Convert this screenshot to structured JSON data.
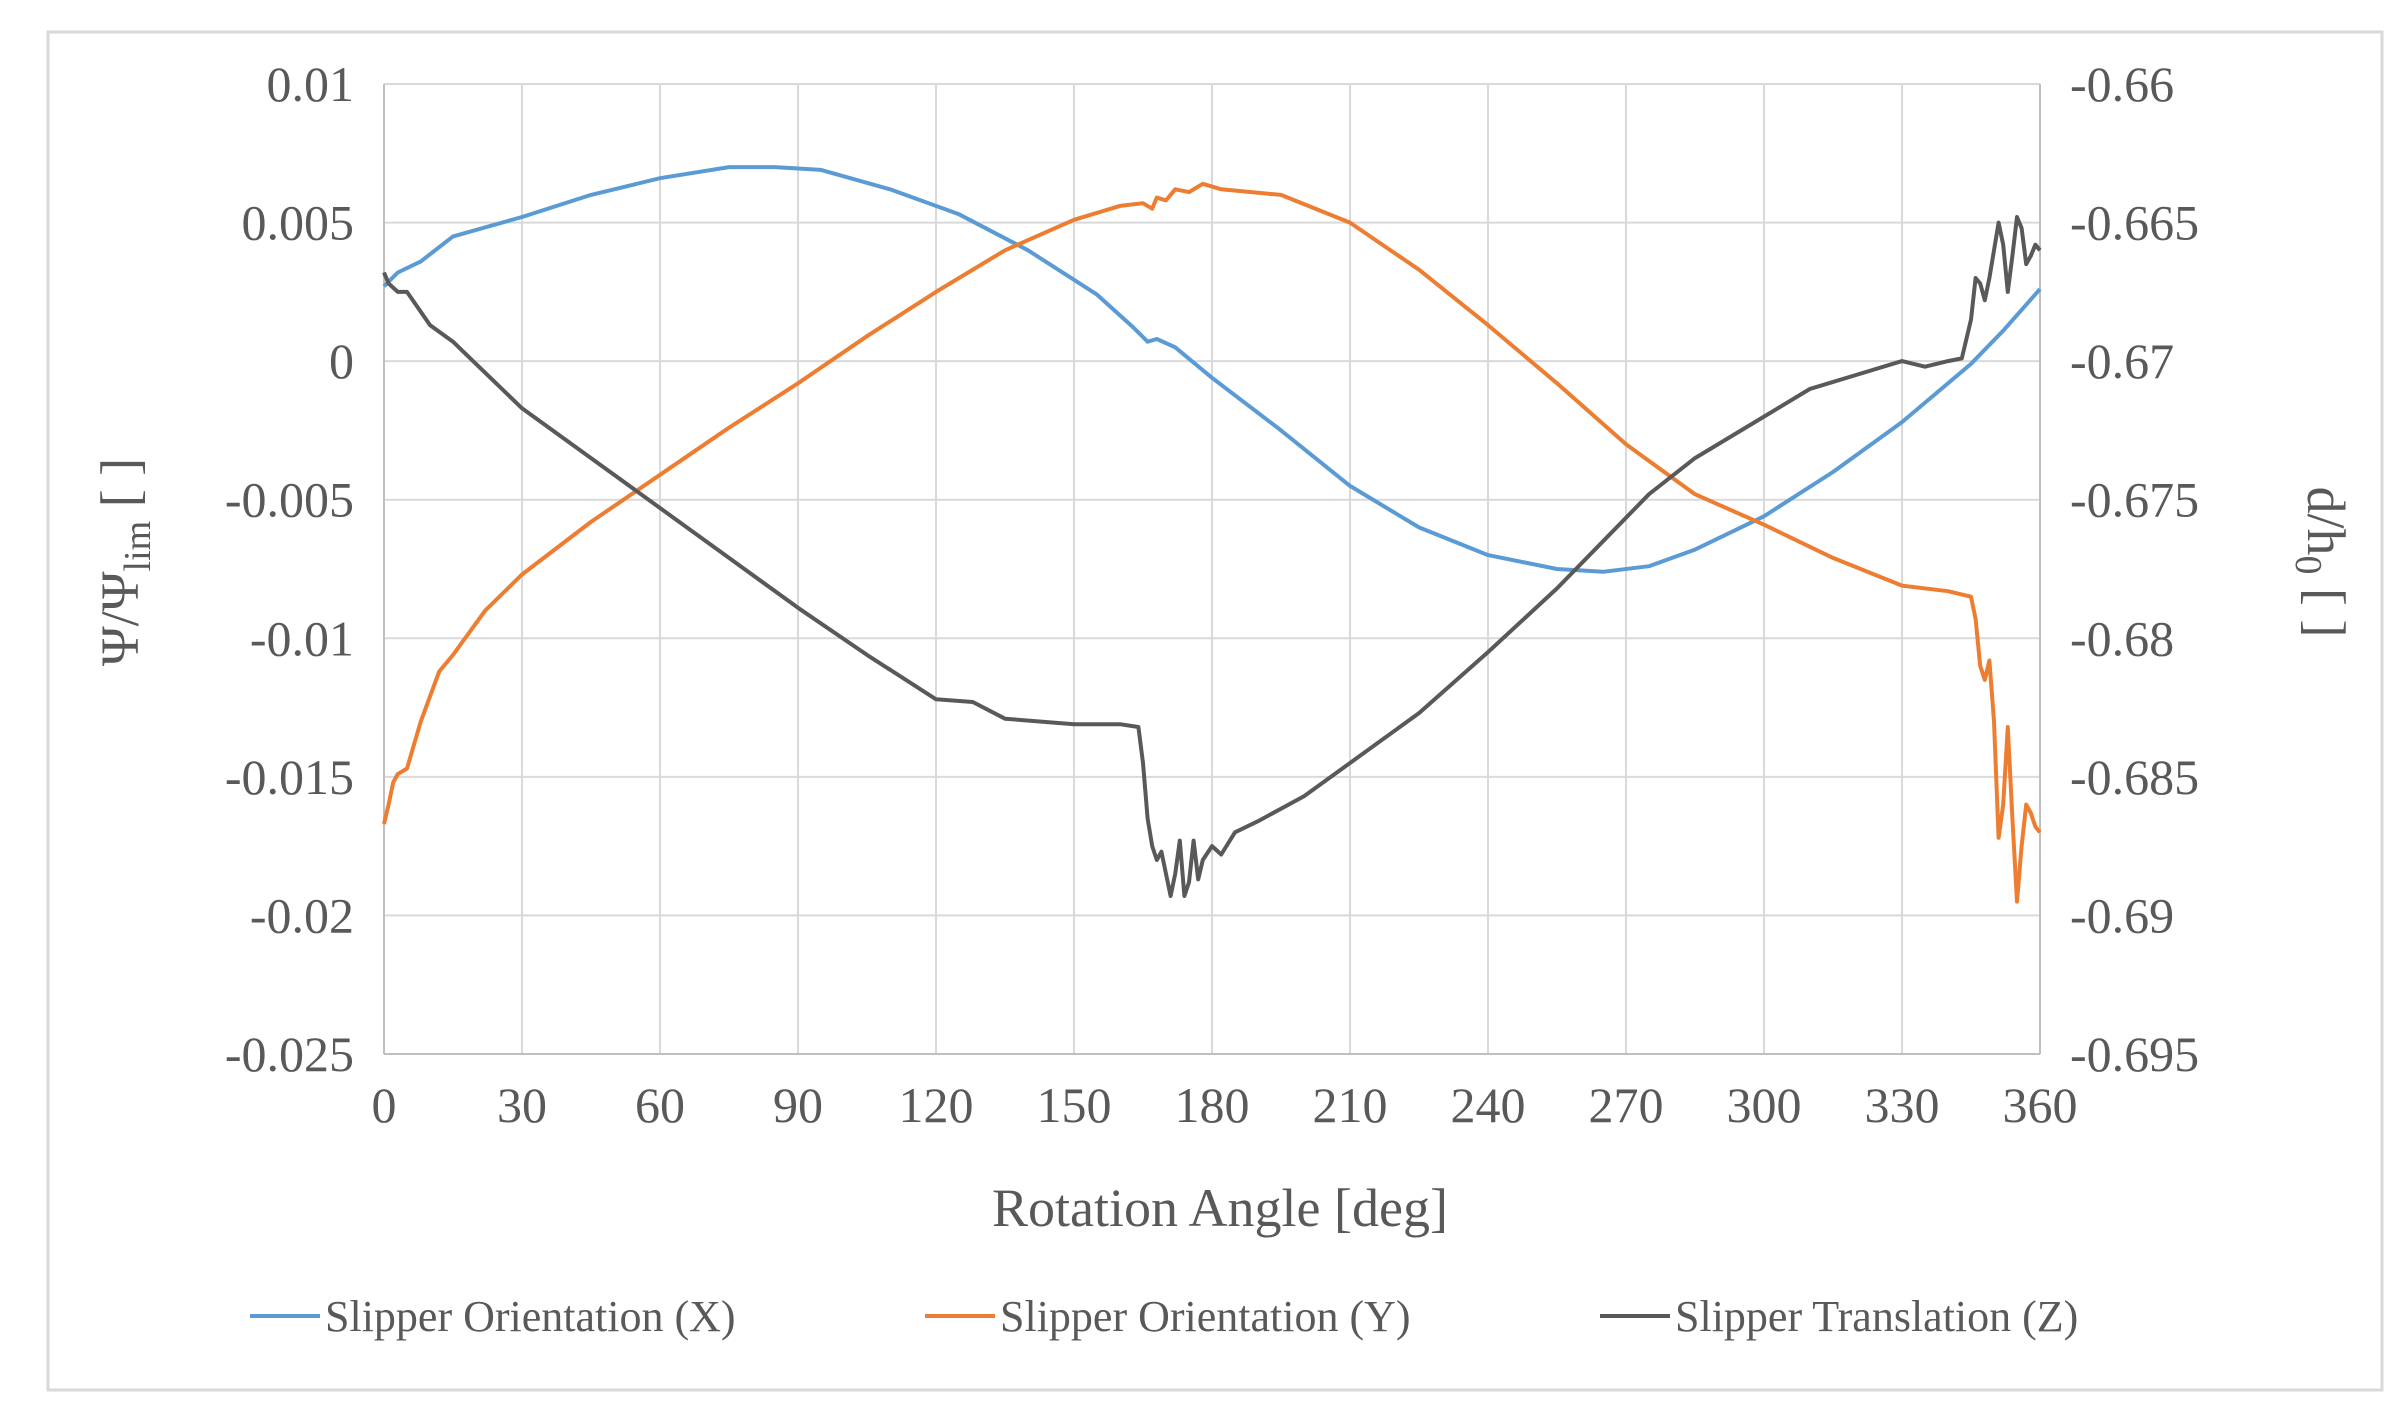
{
  "chart_data": {
    "type": "line",
    "title": "",
    "xlabel": "Rotation Angle [deg]",
    "ylabel_left": {
      "base": "Ψ/Ψ",
      "sub": "lim",
      "suffix": " [ ]"
    },
    "ylabel_right": {
      "base": "d/h",
      "sub": "0",
      "suffix": " [ ]"
    },
    "xlim": [
      0,
      360
    ],
    "ylim_left": [
      -0.025,
      0.01
    ],
    "ylim_right": [
      -0.695,
      -0.66
    ],
    "x_ticks": [
      "0",
      "30",
      "60",
      "90",
      "120",
      "150",
      "180",
      "210",
      "240",
      "270",
      "300",
      "330",
      "360"
    ],
    "x_tick_values": [
      0,
      30,
      60,
      90,
      120,
      150,
      180,
      210,
      240,
      270,
      300,
      330,
      360
    ],
    "y_left_ticks": [
      "0.01",
      "0.005",
      "0",
      "-0.005",
      "-0.01",
      "-0.015",
      "-0.02",
      "-0.025"
    ],
    "y_left_tick_values": [
      0.01,
      0.005,
      0,
      -0.005,
      -0.01,
      -0.015,
      -0.02,
      -0.025
    ],
    "y_right_ticks": [
      "-0.66",
      "-0.665",
      "-0.67",
      "-0.675",
      "-0.68",
      "-0.685",
      "-0.69",
      "-0.695"
    ],
    "y_right_tick_values": [
      -0.66,
      -0.665,
      -0.67,
      -0.675,
      -0.68,
      -0.685,
      -0.69,
      -0.695
    ],
    "grid": true,
    "legend_position": "bottom",
    "series": [
      {
        "name": "Slipper Orientation (X)",
        "color": "#5B9BD5",
        "axis": "left",
        "points": [
          [
            0,
            0.0027
          ],
          [
            3,
            0.0032
          ],
          [
            8,
            0.0036
          ],
          [
            15,
            0.0045
          ],
          [
            30,
            0.0052
          ],
          [
            45,
            0.006
          ],
          [
            60,
            0.0066
          ],
          [
            75,
            0.007
          ],
          [
            85,
            0.007
          ],
          [
            95,
            0.0069
          ],
          [
            110,
            0.0062
          ],
          [
            125,
            0.0053
          ],
          [
            140,
            0.004
          ],
          [
            155,
            0.0024
          ],
          [
            163,
            0.0012
          ],
          [
            166,
            0.0007
          ],
          [
            168,
            0.0008
          ],
          [
            172,
            0.0005
          ],
          [
            180,
            -0.0006
          ],
          [
            195,
            -0.0025
          ],
          [
            210,
            -0.0045
          ],
          [
            225,
            -0.006
          ],
          [
            240,
            -0.007
          ],
          [
            255,
            -0.0075
          ],
          [
            265,
            -0.0076
          ],
          [
            275,
            -0.0074
          ],
          [
            285,
            -0.0068
          ],
          [
            300,
            -0.0056
          ],
          [
            315,
            -0.004
          ],
          [
            330,
            -0.0022
          ],
          [
            345,
            -0.0001
          ],
          [
            352,
            0.0011
          ],
          [
            360,
            0.0026
          ]
        ]
      },
      {
        "name": "Slipper Orientation (Y)",
        "color": "#ED7D31",
        "axis": "left",
        "points": [
          [
            0,
            -0.0167
          ],
          [
            1,
            -0.016
          ],
          [
            2,
            -0.0152
          ],
          [
            3,
            -0.0149
          ],
          [
            5,
            -0.0147
          ],
          [
            8,
            -0.013
          ],
          [
            12,
            -0.0112
          ],
          [
            15,
            -0.0106
          ],
          [
            22,
            -0.009
          ],
          [
            30,
            -0.0077
          ],
          [
            45,
            -0.0058
          ],
          [
            60,
            -0.0041
          ],
          [
            75,
            -0.0024
          ],
          [
            90,
            -0.0008
          ],
          [
            105,
            0.0009
          ],
          [
            120,
            0.0025
          ],
          [
            135,
            0.004
          ],
          [
            150,
            0.0051
          ],
          [
            160,
            0.0056
          ],
          [
            165,
            0.0057
          ],
          [
            167,
            0.0055
          ],
          [
            168,
            0.0059
          ],
          [
            170,
            0.0058
          ],
          [
            172,
            0.0062
          ],
          [
            175,
            0.0061
          ],
          [
            178,
            0.0064
          ],
          [
            182,
            0.0062
          ],
          [
            195,
            0.006
          ],
          [
            210,
            0.005
          ],
          [
            225,
            0.0033
          ],
          [
            240,
            0.0013
          ],
          [
            255,
            -0.0008
          ],
          [
            270,
            -0.003
          ],
          [
            285,
            -0.0048
          ],
          [
            300,
            -0.0059
          ],
          [
            315,
            -0.0071
          ],
          [
            330,
            -0.0081
          ],
          [
            340,
            -0.0083
          ],
          [
            345,
            -0.0085
          ],
          [
            346,
            -0.0093
          ],
          [
            347,
            -0.011
          ],
          [
            348,
            -0.0115
          ],
          [
            349,
            -0.0108
          ],
          [
            350,
            -0.013
          ],
          [
            351,
            -0.0172
          ],
          [
            352,
            -0.016
          ],
          [
            353,
            -0.0132
          ],
          [
            354,
            -0.0165
          ],
          [
            355,
            -0.0195
          ],
          [
            356,
            -0.0175
          ],
          [
            357,
            -0.016
          ],
          [
            358,
            -0.0163
          ],
          [
            359,
            -0.0168
          ],
          [
            360,
            -0.017
          ]
        ]
      },
      {
        "name": "Slipper Translation (Z)",
        "color": "#595959",
        "axis": "right",
        "points": [
          [
            0,
            -0.6668
          ],
          [
            1,
            -0.6672
          ],
          [
            3,
            -0.6675
          ],
          [
            5,
            -0.6675
          ],
          [
            10,
            -0.6687
          ],
          [
            15,
            -0.6693
          ],
          [
            20,
            -0.6701
          ],
          [
            30,
            -0.6717
          ],
          [
            45,
            -0.6735
          ],
          [
            60,
            -0.6753
          ],
          [
            75,
            -0.6771
          ],
          [
            90,
            -0.6789
          ],
          [
            105,
            -0.6806
          ],
          [
            120,
            -0.6822
          ],
          [
            128,
            -0.6823
          ],
          [
            135,
            -0.6829
          ],
          [
            150,
            -0.6831
          ],
          [
            160,
            -0.6831
          ],
          [
            164,
            -0.6832
          ],
          [
            165,
            -0.6845
          ],
          [
            166,
            -0.6865
          ],
          [
            167,
            -0.6875
          ],
          [
            168,
            -0.688
          ],
          [
            169,
            -0.6877
          ],
          [
            170,
            -0.6885
          ],
          [
            171,
            -0.6893
          ],
          [
            172,
            -0.6885
          ],
          [
            173,
            -0.6873
          ],
          [
            174,
            -0.6893
          ],
          [
            175,
            -0.6888
          ],
          [
            176,
            -0.6873
          ],
          [
            177,
            -0.6887
          ],
          [
            178,
            -0.688
          ],
          [
            180,
            -0.6875
          ],
          [
            182,
            -0.6878
          ],
          [
            185,
            -0.687
          ],
          [
            190,
            -0.6866
          ],
          [
            200,
            -0.6857
          ],
          [
            210,
            -0.6845
          ],
          [
            225,
            -0.6827
          ],
          [
            240,
            -0.6805
          ],
          [
            255,
            -0.6782
          ],
          [
            265,
            -0.6765
          ],
          [
            275,
            -0.6748
          ],
          [
            285,
            -0.6735
          ],
          [
            300,
            -0.672
          ],
          [
            310,
            -0.671
          ],
          [
            320,
            -0.6705
          ],
          [
            330,
            -0.67
          ],
          [
            335,
            -0.6702
          ],
          [
            340,
            -0.67
          ],
          [
            343,
            -0.6699
          ],
          [
            345,
            -0.6685
          ],
          [
            346,
            -0.667
          ],
          [
            347,
            -0.6672
          ],
          [
            348,
            -0.6678
          ],
          [
            349,
            -0.667
          ],
          [
            350,
            -0.666
          ],
          [
            351,
            -0.665
          ],
          [
            352,
            -0.6658
          ],
          [
            353,
            -0.6675
          ],
          [
            354,
            -0.6662
          ],
          [
            355,
            -0.6648
          ],
          [
            356,
            -0.6652
          ],
          [
            357,
            -0.6665
          ],
          [
            358,
            -0.6662
          ],
          [
            359,
            -0.6658
          ],
          [
            360,
            -0.666
          ]
        ]
      }
    ]
  }
}
